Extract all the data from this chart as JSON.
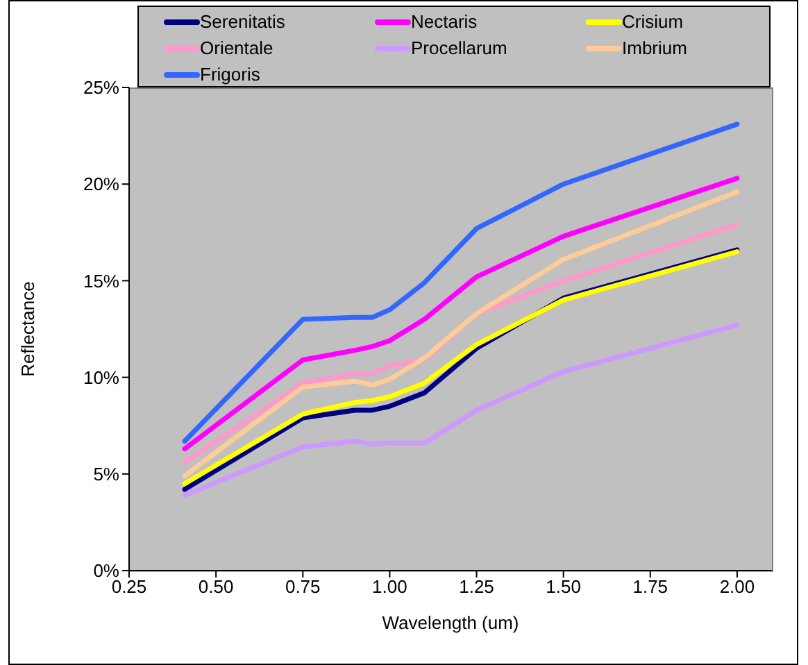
{
  "chart_data": {
    "type": "line",
    "xlabel": "Wavelength (um)",
    "ylabel": "Reflectance",
    "x": [
      0.41,
      0.75,
      0.9,
      0.95,
      1.0,
      1.1,
      1.25,
      1.5,
      2.0
    ],
    "series": [
      {
        "name": "Serenitatis",
        "color": "#000080",
        "values": [
          4.2,
          7.9,
          8.3,
          8.3,
          8.5,
          9.2,
          11.5,
          14.1,
          16.6
        ]
      },
      {
        "name": "Nectaris",
        "color": "#ff00ff",
        "values": [
          6.3,
          10.9,
          11.4,
          11.6,
          11.9,
          13.0,
          15.2,
          17.3,
          20.3
        ]
      },
      {
        "name": "Crisium",
        "color": "#ffff00",
        "values": [
          4.5,
          8.1,
          8.7,
          8.8,
          9.0,
          9.7,
          11.7,
          14.0,
          16.5
        ]
      },
      {
        "name": "Orientale",
        "color": "#ff99cc",
        "values": [
          5.6,
          9.7,
          10.2,
          10.2,
          10.6,
          10.9,
          13.3,
          15.0,
          17.9
        ]
      },
      {
        "name": "Procellarum",
        "color": "#cc99ff",
        "values": [
          3.9,
          6.4,
          6.7,
          6.55,
          6.6,
          6.6,
          8.3,
          10.3,
          12.7
        ]
      },
      {
        "name": "Imbrium",
        "color": "#ffcc99",
        "values": [
          4.9,
          9.5,
          9.8,
          9.6,
          9.9,
          11.0,
          13.3,
          16.1,
          19.6
        ]
      },
      {
        "name": "Frigoris",
        "color": "#3366ff",
        "values": [
          6.7,
          13.0,
          13.1,
          13.1,
          13.5,
          14.9,
          17.7,
          20.0,
          23.1
        ]
      }
    ],
    "xlim": [
      0.25,
      2.1
    ],
    "xticks": [
      0.25,
      {
        "value": 0.5,
        "label": "0.50"
      },
      0.75,
      {
        "value": 1.0,
        "label": "1.00"
      },
      1.25,
      {
        "value": 1.5,
        "label": "1.50"
      },
      1.75,
      {
        "value": 2.0,
        "label": "2.00"
      }
    ],
    "ylim": [
      0,
      25
    ],
    "yticks": [
      {
        "value": 0,
        "label": "0%"
      },
      {
        "value": 5,
        "label": "5%"
      },
      {
        "value": 10,
        "label": "10%"
      },
      {
        "value": 15,
        "label": "15%"
      },
      {
        "value": 20,
        "label": "20%"
      },
      {
        "value": 25,
        "label": "25%"
      }
    ],
    "legend": "top",
    "line_style": "solid"
  }
}
